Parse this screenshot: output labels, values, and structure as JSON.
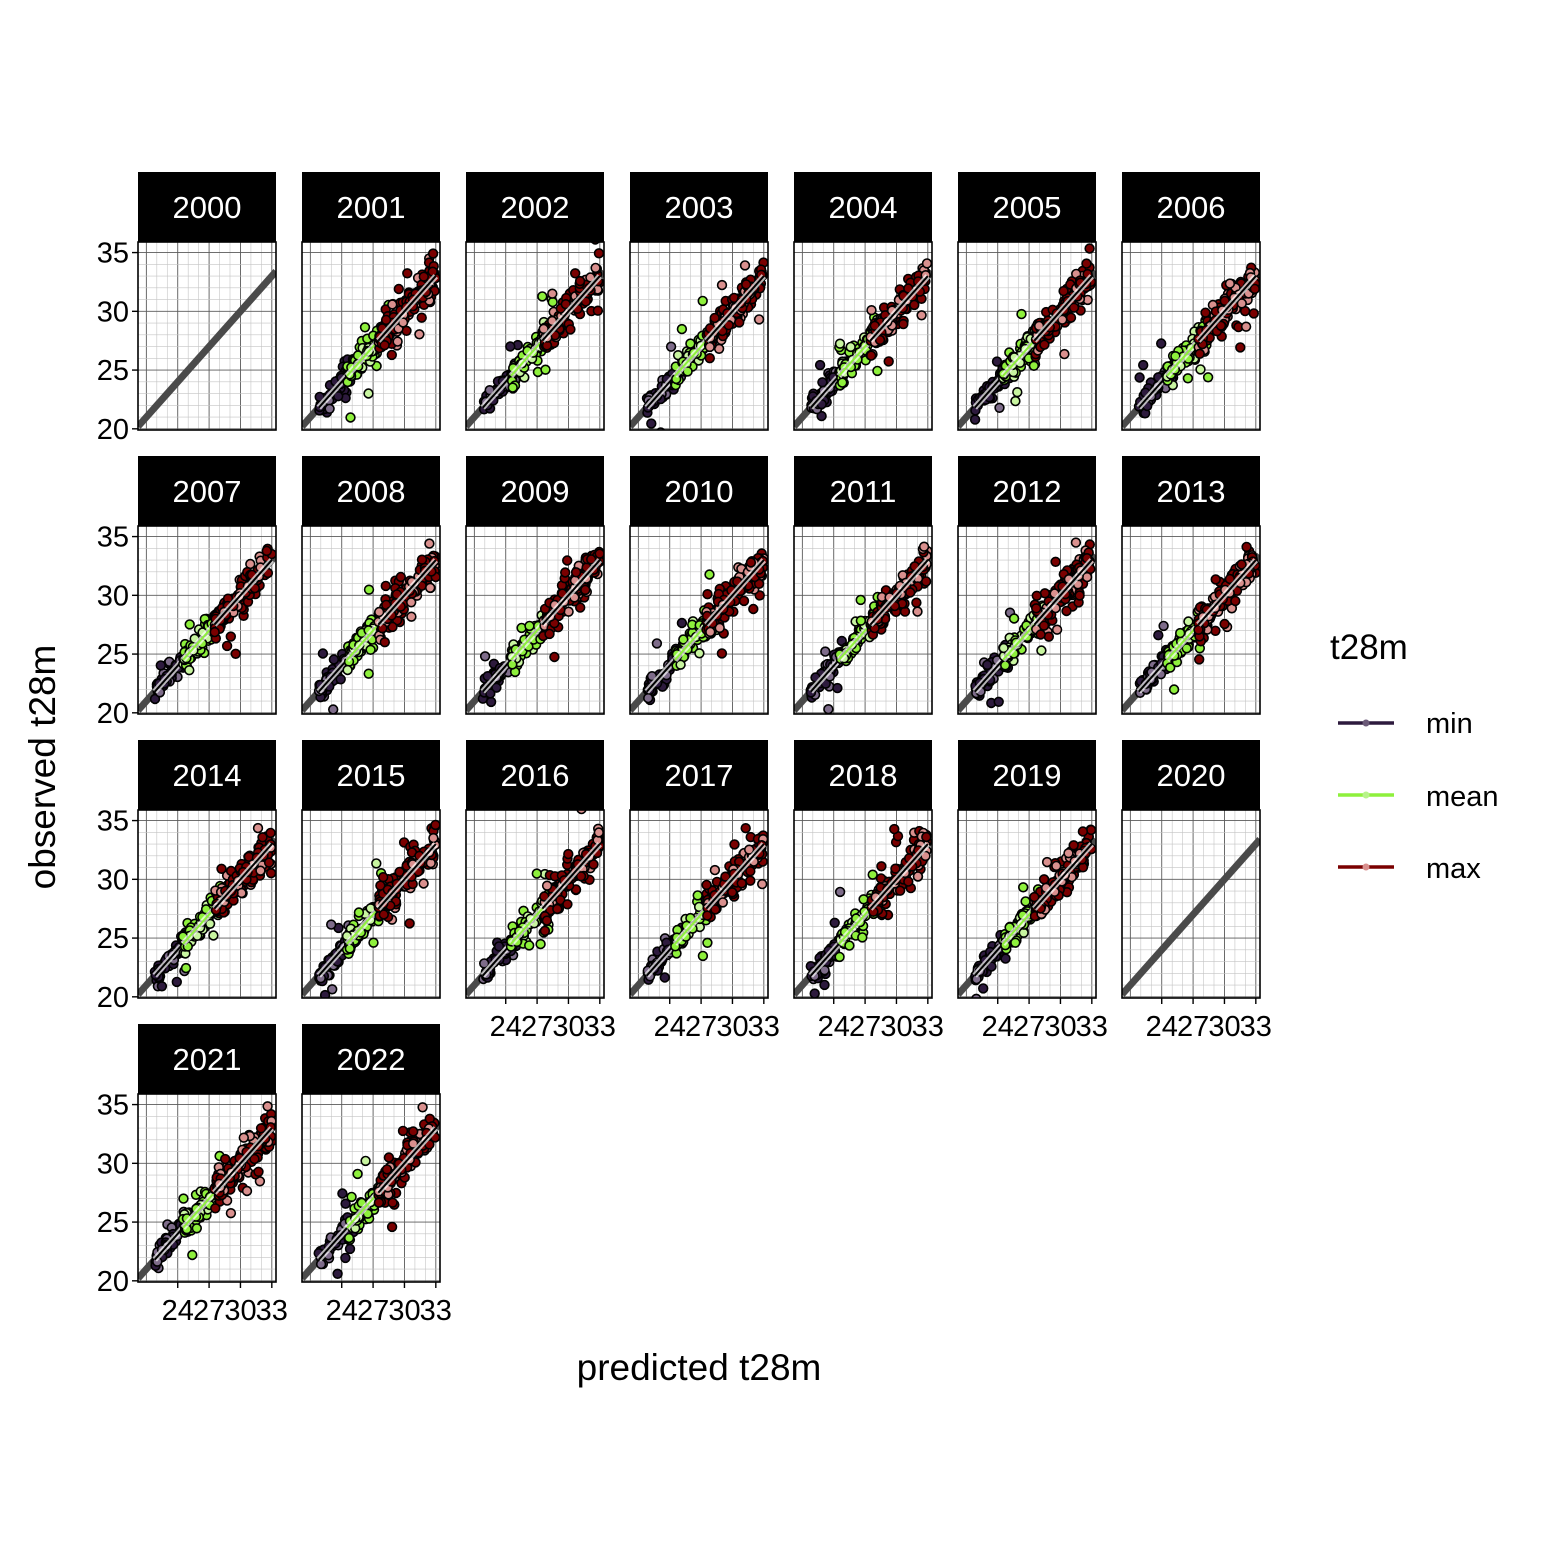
{
  "chart_data": {
    "type": "scatter",
    "title": "",
    "xlabel": "predicted t28m",
    "ylabel": "observed t28m",
    "xlim": [
      20.2,
      33.4
    ],
    "ylim": [
      19.9,
      35.9
    ],
    "x_ticks": [
      24,
      27,
      30,
      33
    ],
    "y_ticks": [
      20,
      25,
      30,
      35
    ],
    "grid": true,
    "legend": {
      "title": "t28m",
      "position": "right",
      "entries": [
        "min",
        "mean",
        "max"
      ]
    },
    "colors": {
      "min": "#2d1a3d",
      "mean": "#8ef03c",
      "max": "#7a0000",
      "max_light": "#d9908e",
      "reference_line": "#4a4a4a",
      "strip_background": "#000000"
    },
    "reference_line": {
      "label": "1:1",
      "slope": 1,
      "intercept": 0
    },
    "panels": [
      {
        "year": "2000",
        "has_data": false
      },
      {
        "year": "2001",
        "has_data": true
      },
      {
        "year": "2002",
        "has_data": true
      },
      {
        "year": "2003",
        "has_data": true
      },
      {
        "year": "2004",
        "has_data": true
      },
      {
        "year": "2005",
        "has_data": true
      },
      {
        "year": "2006",
        "has_data": true
      },
      {
        "year": "2007",
        "has_data": true
      },
      {
        "year": "2008",
        "has_data": true
      },
      {
        "year": "2009",
        "has_data": true
      },
      {
        "year": "2010",
        "has_data": true
      },
      {
        "year": "2011",
        "has_data": true
      },
      {
        "year": "2012",
        "has_data": true
      },
      {
        "year": "2013",
        "has_data": true
      },
      {
        "year": "2014",
        "has_data": true
      },
      {
        "year": "2015",
        "has_data": true
      },
      {
        "year": "2016",
        "has_data": true
      },
      {
        "year": "2017",
        "has_data": true
      },
      {
        "year": "2018",
        "has_data": true
      },
      {
        "year": "2019",
        "has_data": true
      },
      {
        "year": "2020",
        "has_data": false
      },
      {
        "year": "2021",
        "has_data": true
      },
      {
        "year": "2022",
        "has_data": true
      }
    ],
    "series": [
      {
        "name": "min",
        "pred_range": [
          21.8,
          25.2
        ],
        "obs_range": [
          21.0,
          25.5
        ]
      },
      {
        "name": "mean",
        "pred_range": [
          24.5,
          28.5
        ],
        "obs_range": [
          23.5,
          28.5
        ]
      },
      {
        "name": "max",
        "pred_range": [
          27.5,
          33.0
        ],
        "obs_range": [
          25.5,
          34.5
        ]
      }
    ]
  }
}
